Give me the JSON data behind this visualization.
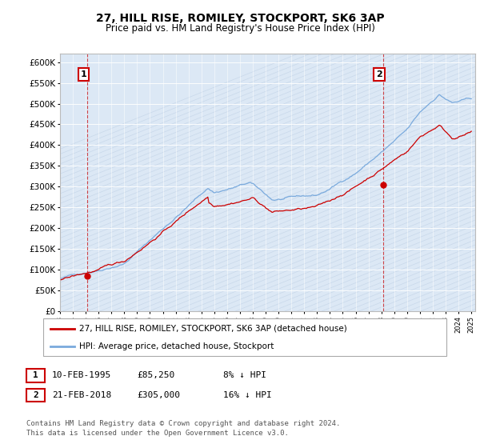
{
  "title": "27, HILL RISE, ROMILEY, STOCKPORT, SK6 3AP",
  "subtitle": "Price paid vs. HM Land Registry's House Price Index (HPI)",
  "ylim": [
    0,
    620000
  ],
  "xlim_start": 1993.5,
  "xlim_end": 2025.3,
  "sale1_x": 1995.12,
  "sale1_y": 85250,
  "sale2_x": 2018.13,
  "sale2_y": 305000,
  "legend_line1": "27, HILL RISE, ROMILEY, STOCKPORT, SK6 3AP (detached house)",
  "legend_line2": "HPI: Average price, detached house, Stockport",
  "footer": "Contains HM Land Registry data © Crown copyright and database right 2024.\nThis data is licensed under the Open Government Licence v3.0.",
  "hpi_color": "#7aaadd",
  "sale_color": "#cc0000",
  "bg_color": "#dce8f5",
  "grid_color": "#ffffff",
  "hatch_color": "#c8d8ea"
}
